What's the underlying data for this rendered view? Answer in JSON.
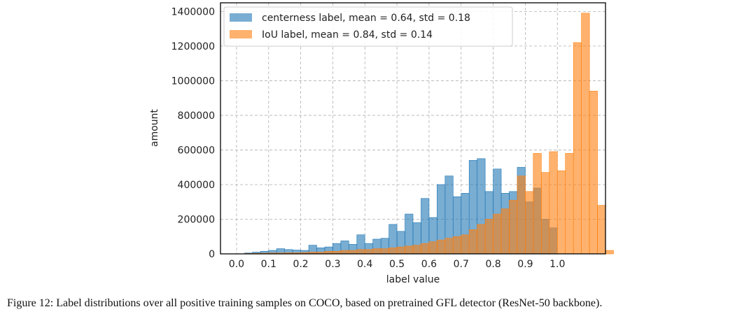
{
  "colors": {
    "centerness": "#1f77b4",
    "iou": "#ff7f0e",
    "grid": "#b0b0b0",
    "frame": "#000000"
  },
  "chart_data": {
    "type": "histogram",
    "xlabel": "label value",
    "ylabel": "amount",
    "xlim": [
      -0.05,
      1.15
    ],
    "ylim": [
      0,
      1450000
    ],
    "xticks": [
      0.0,
      0.1,
      0.2,
      0.3,
      0.4,
      0.5,
      0.6,
      0.7,
      0.8,
      0.9,
      1.0
    ],
    "xtick_labels": [
      "0.0",
      "0.1",
      "0.2",
      "0.3",
      "0.4",
      "0.5",
      "0.6",
      "0.7",
      "0.8",
      "0.9",
      "1.0"
    ],
    "yticks": [
      0,
      200000,
      400000,
      600000,
      800000,
      1000000,
      1200000,
      1400000
    ],
    "ytick_labels": [
      "0",
      "200000",
      "400000",
      "600000",
      "800000",
      "1000000",
      "1200000",
      "1400000"
    ],
    "grid": true,
    "legend_position": "top-left",
    "bin_start": 0.0,
    "bin_width": 0.025,
    "series": [
      {
        "name": "centerness label, mean = 0.64, std = 0.18",
        "color_key": "centerness",
        "opacity": 0.6,
        "values": [
          0,
          5000,
          10000,
          15000,
          20000,
          30000,
          25000,
          22000,
          20000,
          50000,
          35000,
          40000,
          60000,
          75000,
          55000,
          110000,
          60000,
          85000,
          90000,
          170000,
          130000,
          230000,
          180000,
          320000,
          210000,
          400000,
          450000,
          330000,
          350000,
          540000,
          550000,
          360000,
          490000,
          350000,
          360000,
          500000,
          300000,
          380000,
          200000,
          150000
        ]
      },
      {
        "name": "IoU label, mean = 0.84, std = 0.14",
        "color_key": "iou",
        "opacity": 0.6,
        "values": [
          0,
          2000,
          3000,
          4000,
          5000,
          5000,
          6000,
          6000,
          8000,
          10000,
          10000,
          15000,
          15000,
          20000,
          20000,
          25000,
          25000,
          30000,
          30000,
          35000,
          40000,
          45000,
          50000,
          60000,
          70000,
          80000,
          90000,
          100000,
          110000,
          140000,
          170000,
          200000,
          230000,
          260000,
          310000,
          450000,
          360000,
          580000,
          470000,
          590000,
          480000,
          580000,
          1220000,
          1390000,
          940000,
          280000,
          20000,
          0
        ]
      }
    ]
  },
  "caption": "Figure 12: Label distributions over all positive training samples on COCO, based on pretrained GFL detector (ResNet-50 backbone)."
}
